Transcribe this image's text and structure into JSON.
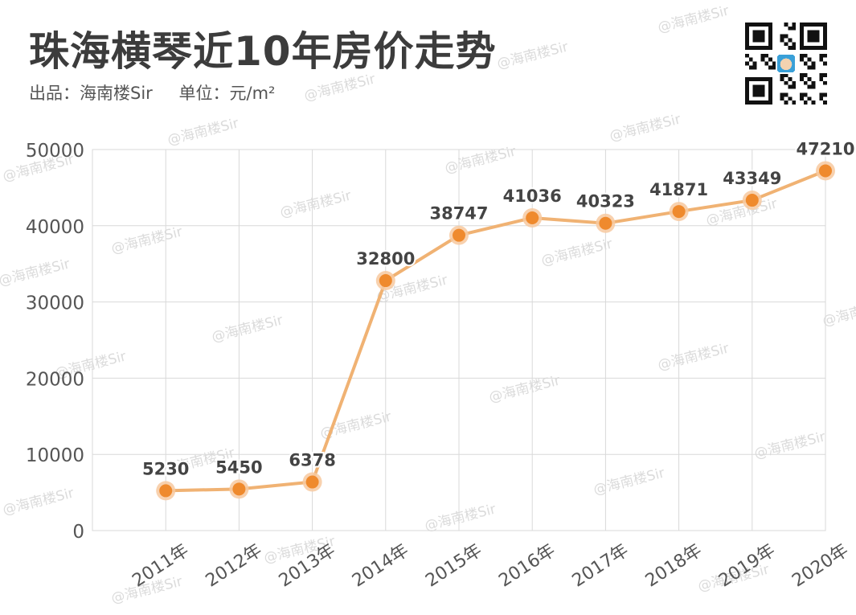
{
  "header": {
    "title": "珠海横琴近10年房价走势",
    "source": "出品：海南楼Sir",
    "unit": "单位：元/m²"
  },
  "watermark_text": "@海南楼Sir",
  "colors": {
    "line": "#f0b273",
    "point": "#ef8a2d",
    "halo": "#f7c9a0",
    "grid": "#d9d9d9",
    "title": "#3c3c3c"
  },
  "chart_data": {
    "type": "line",
    "title": "珠海横琴近10年房价走势",
    "categories": [
      "2011年",
      "2012年",
      "2013年",
      "2014年",
      "2015年",
      "2016年",
      "2017年",
      "2018年",
      "2019年",
      "2020年"
    ],
    "values": [
      5230,
      5450,
      6378,
      32800,
      38747,
      41036,
      40323,
      41871,
      43349,
      47210
    ],
    "yticks": [
      0,
      10000,
      20000,
      30000,
      40000,
      50000
    ],
    "ylim": [
      0,
      50000
    ],
    "grid": true,
    "data_labels": true
  }
}
